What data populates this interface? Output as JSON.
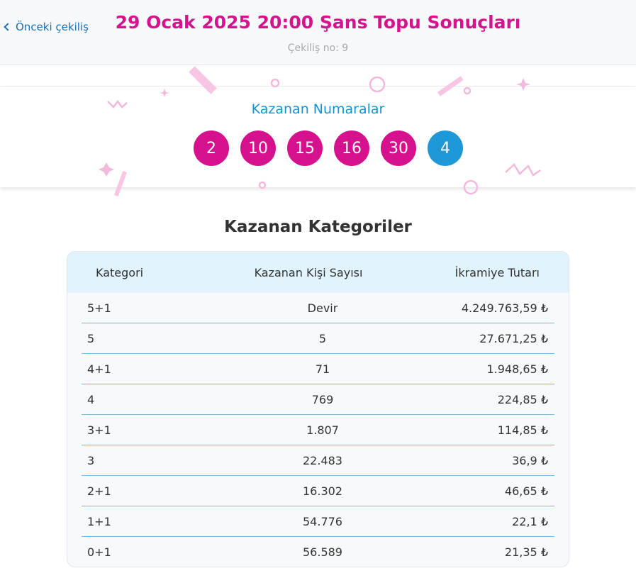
{
  "header": {
    "back_label": "Önceki çekiliş",
    "title": "29 Ocak 2025 20:00 Şans Topu Sonuçları",
    "draw_no": "Çekiliş no: 9"
  },
  "winning": {
    "title": "Kazanan Numaralar",
    "numbers": [
      "2",
      "10",
      "15",
      "16",
      "30"
    ],
    "bonus": "4",
    "colors": {
      "main": "#d6118d",
      "bonus": "#1e98d6"
    }
  },
  "categories": {
    "title": "Kazanan Kategoriler",
    "headers": [
      "Kategori",
      "Kazanan Kişi Sayısı",
      "İkramiye Tutarı"
    ],
    "rows": [
      [
        "5+1",
        "Devir",
        "4.249.763,59 ₺"
      ],
      [
        "5",
        "5",
        "27.671,25 ₺"
      ],
      [
        "4+1",
        "71",
        "1.948,65 ₺"
      ],
      [
        "4",
        "769",
        "224,85 ₺"
      ],
      [
        "3+1",
        "1.807",
        "114,85 ₺"
      ],
      [
        "3",
        "22.483",
        "36,9 ₺"
      ],
      [
        "2+1",
        "16.302",
        "46,65 ₺"
      ],
      [
        "1+1",
        "54.776",
        "22,1 ₺"
      ],
      [
        "0+1",
        "56.589",
        "21,35 ₺"
      ]
    ]
  }
}
